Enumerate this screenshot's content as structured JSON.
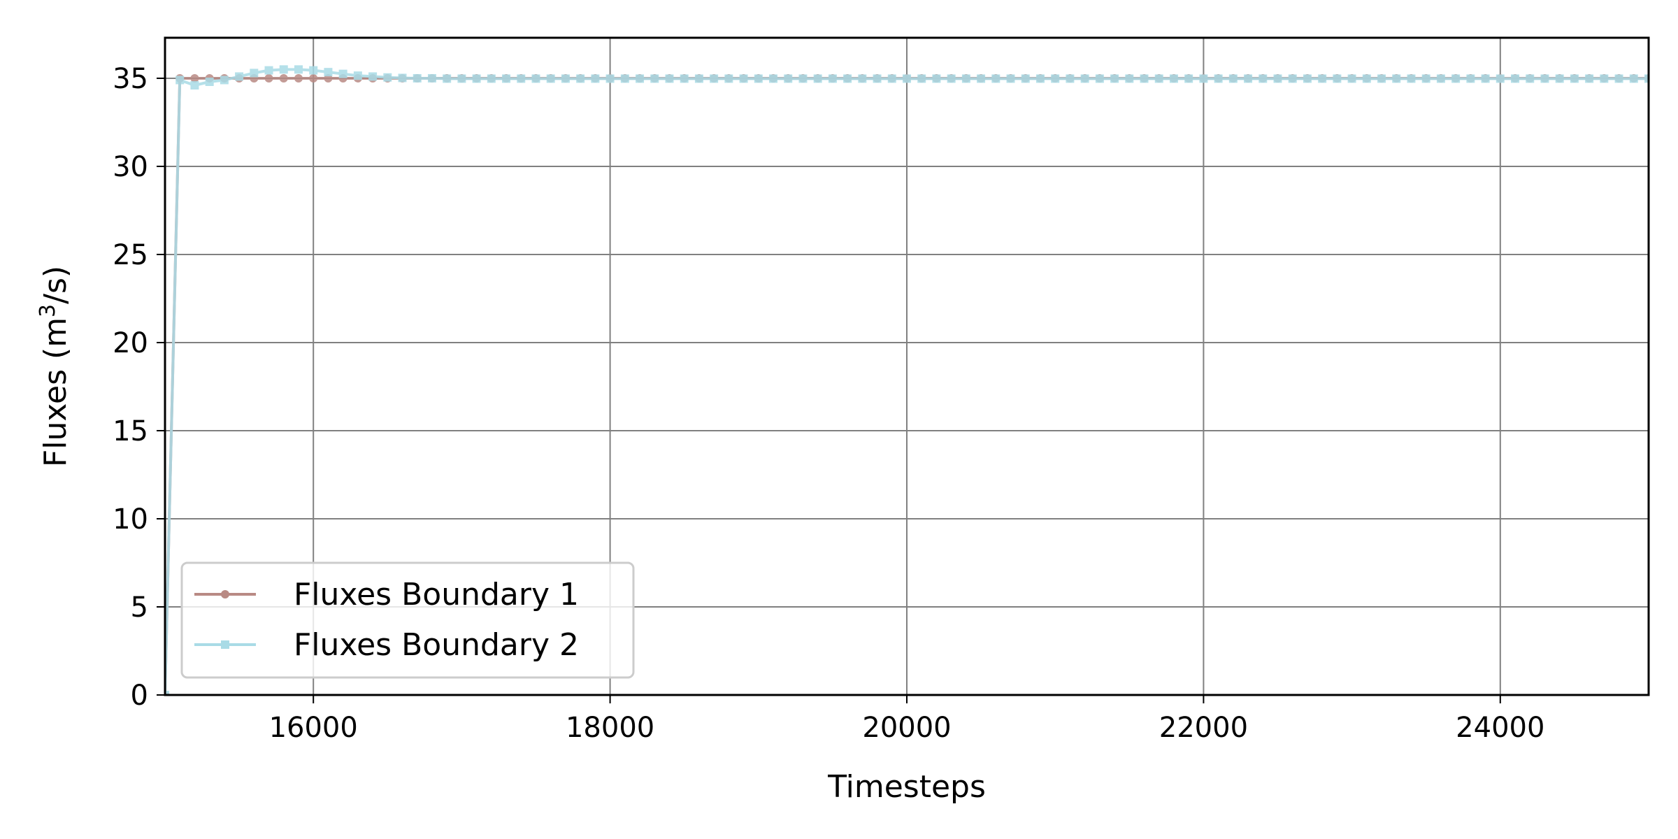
{
  "chart_data": {
    "type": "line",
    "xlabel": "Timesteps",
    "ylabel": "Fluxes (m³/s)",
    "ylabel_parts": {
      "pre": "Fluxes (m",
      "sup": "3",
      "post": "/s)"
    },
    "xlim": [
      15000,
      25000
    ],
    "ylim": [
      0,
      37.3
    ],
    "x_ticks": [
      16000,
      18000,
      20000,
      22000,
      24000
    ],
    "y_ticks": [
      0,
      5,
      10,
      15,
      20,
      25,
      30,
      35
    ],
    "grid": true,
    "legend_position": "lower-left",
    "x": [
      15000,
      15100,
      15200,
      15300,
      15400,
      15500,
      15600,
      15700,
      15800,
      15900,
      16000,
      16100,
      16200,
      16300,
      16400,
      16500,
      16600,
      16700,
      16800,
      16900,
      17000,
      17100,
      17200,
      17300,
      17400,
      17500,
      17600,
      17700,
      17800,
      17900,
      18000,
      18100,
      18200,
      18300,
      18400,
      18500,
      18600,
      18700,
      18800,
      18900,
      19000,
      19100,
      19200,
      19300,
      19400,
      19500,
      19600,
      19700,
      19800,
      19900,
      20000,
      20100,
      20200,
      20300,
      20400,
      20500,
      20600,
      20700,
      20800,
      20900,
      21000,
      21100,
      21200,
      21300,
      21400,
      21500,
      21600,
      21700,
      21800,
      21900,
      22000,
      22100,
      22200,
      22300,
      22400,
      22500,
      22600,
      22700,
      22800,
      22900,
      23000,
      23100,
      23200,
      23300,
      23400,
      23500,
      23600,
      23700,
      23800,
      23900,
      24000,
      24100,
      24200,
      24300,
      24400,
      24500,
      24600,
      24700,
      24800,
      24900,
      25000
    ],
    "series": [
      {
        "name": "Fluxes Boundary 1",
        "color": "#b98a84",
        "marker": "circle",
        "values": [
          0,
          35,
          35,
          35,
          35,
          35,
          35,
          35,
          35,
          35,
          35,
          35,
          35,
          35,
          35,
          35,
          35,
          35,
          35,
          35,
          35,
          35,
          35,
          35,
          35,
          35,
          35,
          35,
          35,
          35,
          35,
          35,
          35,
          35,
          35,
          35,
          35,
          35,
          35,
          35,
          35,
          35,
          35,
          35,
          35,
          35,
          35,
          35,
          35,
          35,
          35,
          35,
          35,
          35,
          35,
          35,
          35,
          35,
          35,
          35,
          35,
          35,
          35,
          35,
          35,
          35,
          35,
          35,
          35,
          35,
          35,
          35,
          35,
          35,
          35,
          35,
          35,
          35,
          35,
          35,
          35,
          35,
          35,
          35,
          35,
          35,
          35,
          35,
          35,
          35,
          35,
          35,
          35,
          35,
          35,
          35,
          35,
          35,
          35,
          35,
          35
        ]
      },
      {
        "name": "Fluxes Boundary 2",
        "color": "#a9dbe6",
        "marker": "square",
        "values": [
          0,
          34.9,
          34.6,
          34.8,
          34.9,
          35.1,
          35.3,
          35.45,
          35.5,
          35.5,
          35.45,
          35.35,
          35.25,
          35.15,
          35.1,
          35.05,
          35.02,
          35.0,
          35.0,
          34.98,
          34.98,
          34.98,
          34.98,
          34.98,
          34.98,
          34.98,
          34.98,
          34.98,
          34.98,
          34.98,
          34.98,
          34.98,
          34.98,
          34.98,
          34.98,
          34.98,
          34.98,
          34.98,
          34.98,
          34.98,
          34.98,
          34.98,
          34.98,
          34.98,
          34.98,
          34.98,
          34.98,
          34.98,
          34.98,
          34.98,
          34.98,
          34.98,
          34.98,
          34.98,
          34.98,
          34.98,
          34.98,
          34.98,
          34.98,
          34.98,
          34.98,
          34.98,
          34.98,
          34.98,
          34.98,
          34.98,
          34.98,
          34.98,
          34.98,
          34.98,
          34.98,
          34.98,
          34.98,
          34.98,
          34.98,
          34.98,
          34.98,
          34.98,
          34.98,
          34.98,
          34.98,
          34.98,
          34.98,
          34.98,
          34.98,
          34.98,
          34.98,
          34.98,
          34.98,
          34.98,
          34.98,
          34.98,
          34.98,
          34.98,
          34.98,
          34.98,
          34.98,
          34.98,
          34.98,
          34.98,
          34.98
        ]
      }
    ]
  }
}
